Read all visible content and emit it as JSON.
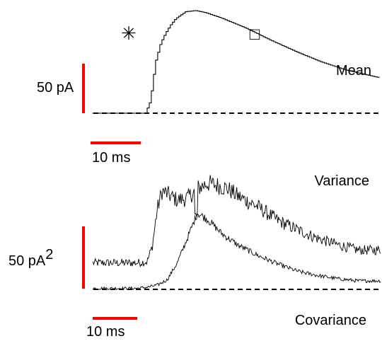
{
  "chart_data": [
    {
      "type": "line",
      "panel": "top",
      "series": [
        {
          "name": "Mean",
          "t_ms": [
            -20,
            -10,
            -2,
            0,
            1,
            2,
            3,
            4,
            5,
            6,
            8,
            10,
            12,
            15,
            20,
            25,
            30,
            35,
            40,
            48
          ],
          "current_pA": [
            0,
            0,
            0,
            0,
            12,
            50,
            68,
            78,
            86,
            92,
            99,
            100,
            98,
            93,
            83,
            71,
            60,
            50,
            42,
            33
          ]
        }
      ],
      "baseline_pA": 0,
      "markers": [
        {
          "symbol": "*",
          "t_ms": -4,
          "value": 84
        },
        {
          "symbol": "□",
          "t_ms": 17,
          "value": 81
        }
      ],
      "scale_bar_y": "50 pA",
      "scale_bar_x": "10 ms"
    },
    {
      "type": "line",
      "panel": "bottom",
      "series": [
        {
          "name": "Variance",
          "t_ms": [
            -10,
            -2,
            0,
            1,
            2,
            3,
            4,
            6,
            8,
            10,
            12,
            14,
            16,
            18,
            22,
            26,
            30,
            34,
            38,
            42
          ],
          "variance_pA2": [
            25,
            25,
            26,
            40,
            75,
            93,
            90,
            84,
            86,
            95,
            100,
            98,
            95,
            88,
            78,
            65,
            56,
            48,
            42,
            37
          ]
        },
        {
          "name": "Covariance",
          "t_ms": [
            -10,
            -2,
            0,
            2,
            4,
            6,
            8,
            10,
            12,
            15,
            18,
            22,
            26,
            30,
            34,
            38,
            42
          ],
          "covariance_pA2": [
            1,
            1,
            2,
            4,
            9,
            25,
            48,
            72,
            66,
            52,
            42,
            32,
            24,
            17,
            13,
            10,
            8
          ]
        }
      ],
      "baseline_pA2": 0,
      "scale_bar_y": "50 pA2",
      "scale_bar_x": "10 ms"
    }
  ],
  "labels": {
    "mean": "Mean",
    "variance": "Variance",
    "covariance": "Covariance",
    "scale_top_y_text": "50 pA",
    "scale_top_x_text": "10 ms",
    "scale_bottom_y_base": "50 pA",
    "scale_bottom_y_sup": "2",
    "scale_bottom_x_text": "10 ms",
    "asterisk": "✳",
    "square": "□"
  },
  "colors": {
    "trace": "#000000",
    "scale_bar": "#ff0000",
    "square_marker": "#2222cc"
  }
}
